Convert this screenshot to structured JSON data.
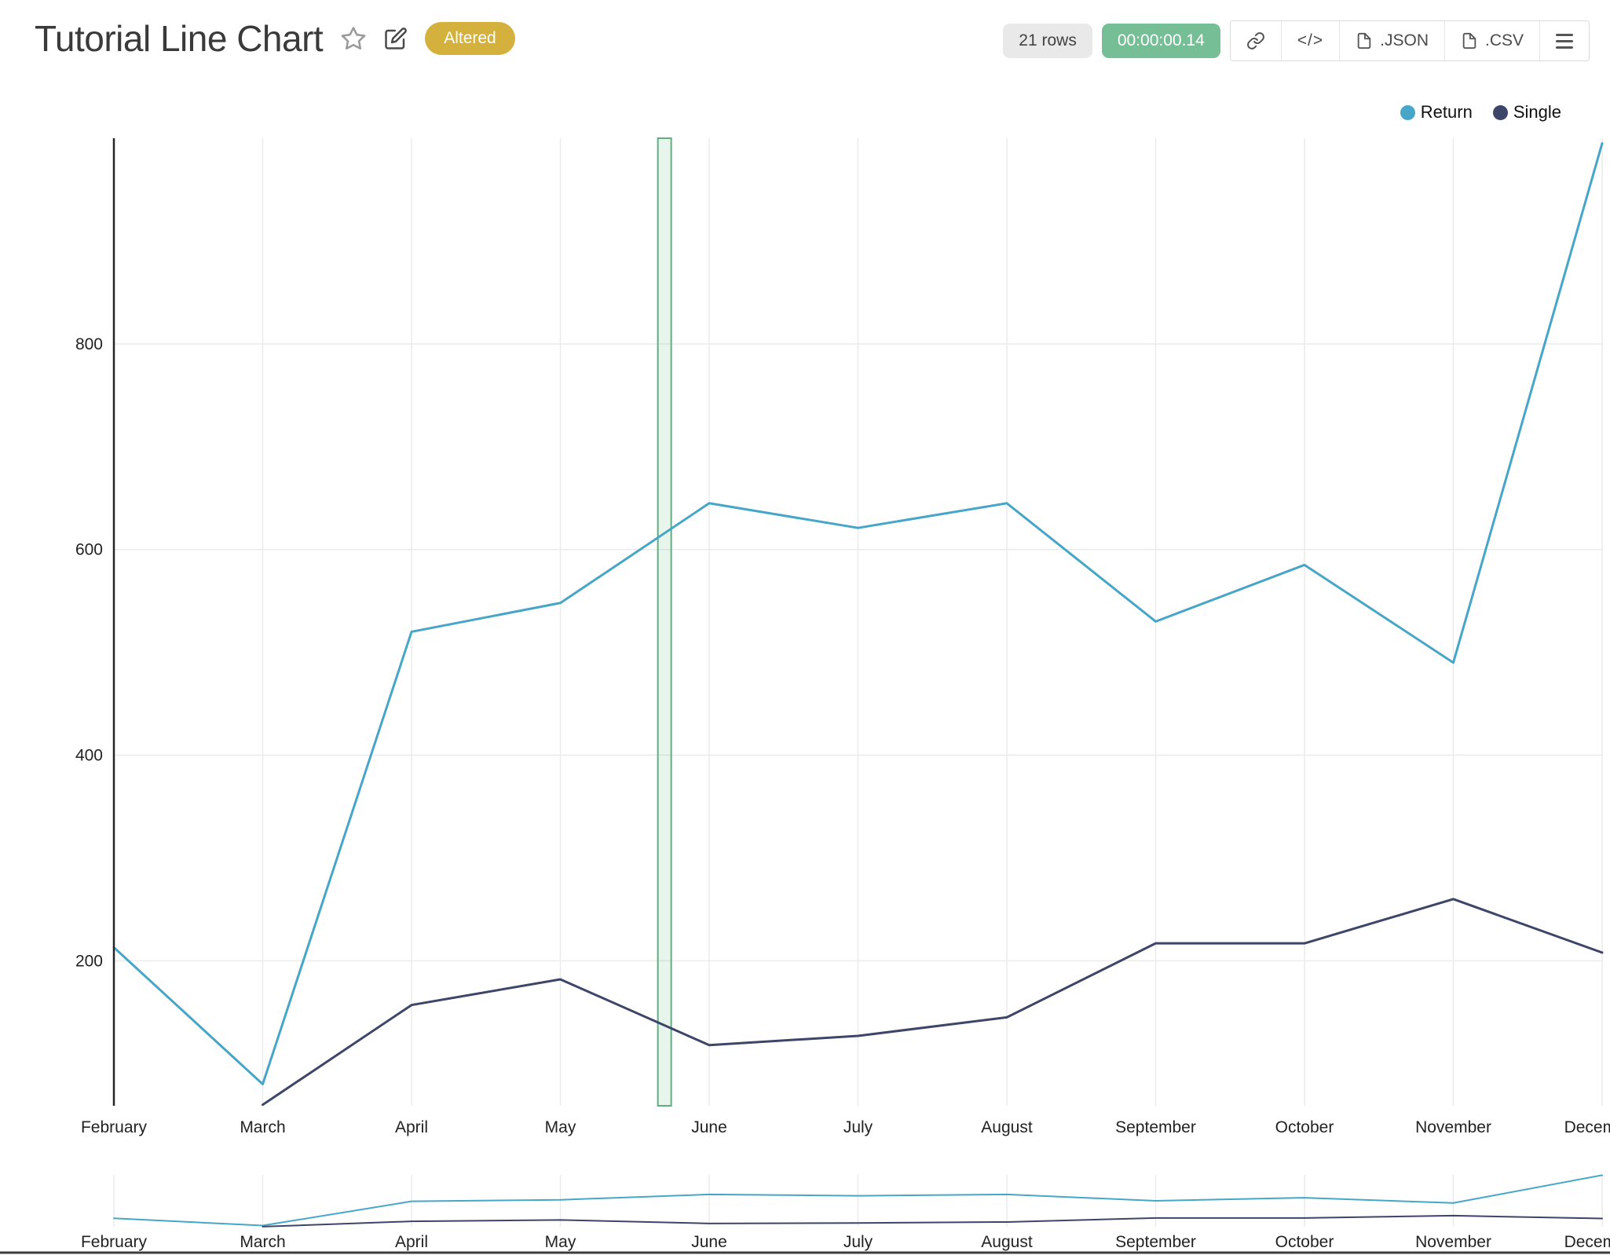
{
  "header": {
    "title": "Tutorial Line Chart",
    "altered_badge": "Altered",
    "rows_label": "21 rows",
    "runtime": "00:00:00.14",
    "buttons": {
      "code": "</>",
      "json": ".JSON",
      "csv": ".CSV"
    }
  },
  "colors": {
    "return_series": "#47a6c8",
    "single_series": "#3d4569",
    "altered_badge_bg": "#d4b13c",
    "runtime_badge_bg": "#76bf96",
    "rows_badge_bg": "#e9e9e9",
    "grid": "#ebebeb",
    "axis": "#262626",
    "tick_text": "#222222",
    "highlight_fill": "rgba(121,197,151,0.18)",
    "highlight_stroke": "#61ad80",
    "range_border": "#3c3c3c"
  },
  "chart_data": {
    "type": "line",
    "title": "Tutorial Line Chart",
    "categories": [
      "February",
      "March",
      "April",
      "May",
      "June",
      "July",
      "August",
      "September",
      "October",
      "November",
      "December"
    ],
    "series": [
      {
        "name": "Return",
        "color": "#47a6c8",
        "start_index": 0,
        "values": [
          213,
          80,
          520,
          548,
          645,
          621,
          645,
          530,
          585,
          490,
          995
        ]
      },
      {
        "name": "Single",
        "color": "#3d4569",
        "start_index": 1,
        "values": [
          60,
          157,
          182,
          118,
          127,
          145,
          217,
          217,
          260,
          208
        ]
      }
    ],
    "xlabel": "",
    "ylabel": "",
    "yticks": [
      200,
      400,
      600,
      800
    ],
    "ylim": [
      59,
      1000
    ],
    "grid": true,
    "legend_position": "top-right",
    "highlight_band": {
      "between": [
        "May",
        "June"
      ],
      "category_position": 3.7
    },
    "range_selector": true
  }
}
